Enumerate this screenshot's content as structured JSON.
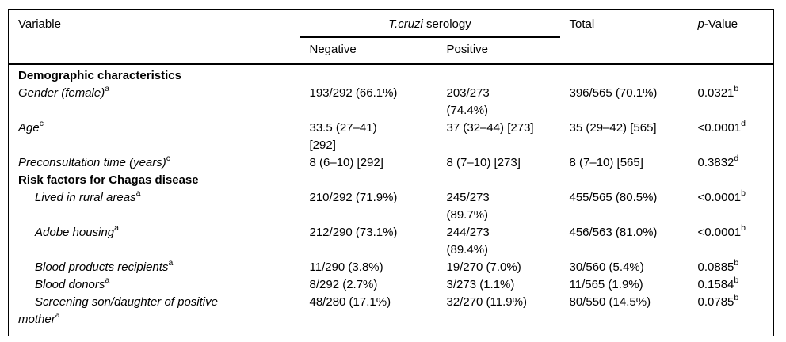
{
  "table": {
    "header": {
      "variable": "Variable",
      "serology_italic": "T.cruzi",
      "serology_rest": " serology",
      "negative": "Negative",
      "positive": "Positive",
      "total": "Total",
      "pvalue_italic": "p",
      "pvalue_rest": "-Value"
    },
    "rows": [
      {
        "type": "section",
        "variable": "Demographic characteristics"
      },
      {
        "type": "data",
        "variable": "Gender (female)",
        "variable_sup": "a",
        "negative": "193/292 (66.1%)",
        "positive": "203/273\n(74.4%)",
        "total": "396/565 (70.1%)",
        "pvalue": "0.0321",
        "pvalue_sup": "b"
      },
      {
        "type": "data",
        "variable": "Age",
        "variable_sup": "c",
        "negative": "33.5 (27–41)\n[292]",
        "positive": "37 (32–44) [273]",
        "total": "35 (29–42) [565]",
        "pvalue": "<0.0001",
        "pvalue_sup": "d"
      },
      {
        "type": "data",
        "variable": "Preconsultation time (years)",
        "variable_sup": "c",
        "negative": "8 (6–10) [292]",
        "positive": "8 (7–10) [273]",
        "total": "8 (7–10) [565]",
        "pvalue": "0.3832",
        "pvalue_sup": "d"
      },
      {
        "type": "section",
        "variable": "Risk factors for Chagas disease"
      },
      {
        "type": "data",
        "variable": "Lived in rural areas",
        "variable_sup": "a",
        "negative": "210/292 (71.9%)",
        "positive": "245/273\n(89.7%)",
        "total": "455/565 (80.5%)",
        "pvalue": "<0.0001",
        "pvalue_sup": "b"
      },
      {
        "type": "data",
        "variable": "Adobe housing",
        "variable_sup": "a",
        "negative": "212/290 (73.1%)",
        "positive": "244/273\n(89.4%)",
        "total": "456/563 (81.0%)",
        "pvalue": "<0.0001",
        "pvalue_sup": "b"
      },
      {
        "type": "data",
        "variable": "Blood products recipients",
        "variable_sup": "a",
        "negative": "11/290 (3.8%)",
        "positive": "19/270 (7.0%)",
        "total": "30/560 (5.4%)",
        "pvalue": "0.0885",
        "pvalue_sup": "b"
      },
      {
        "type": "data",
        "variable": "Blood donors",
        "variable_sup": "a",
        "negative": "8/292 (2.7%)",
        "positive": "3/273 (1.1%)",
        "total": "11/565 (1.9%)",
        "pvalue": "0.1584",
        "pvalue_sup": "b"
      },
      {
        "type": "data",
        "variable": "Screening son/daughter of positive\nmother",
        "variable_sup": "a",
        "negative": "48/280 (17.1%)",
        "positive": "32/270 (11.9%)",
        "total": "80/550 (14.5%)",
        "pvalue": "0.0785",
        "pvalue_sup": "b"
      }
    ]
  }
}
